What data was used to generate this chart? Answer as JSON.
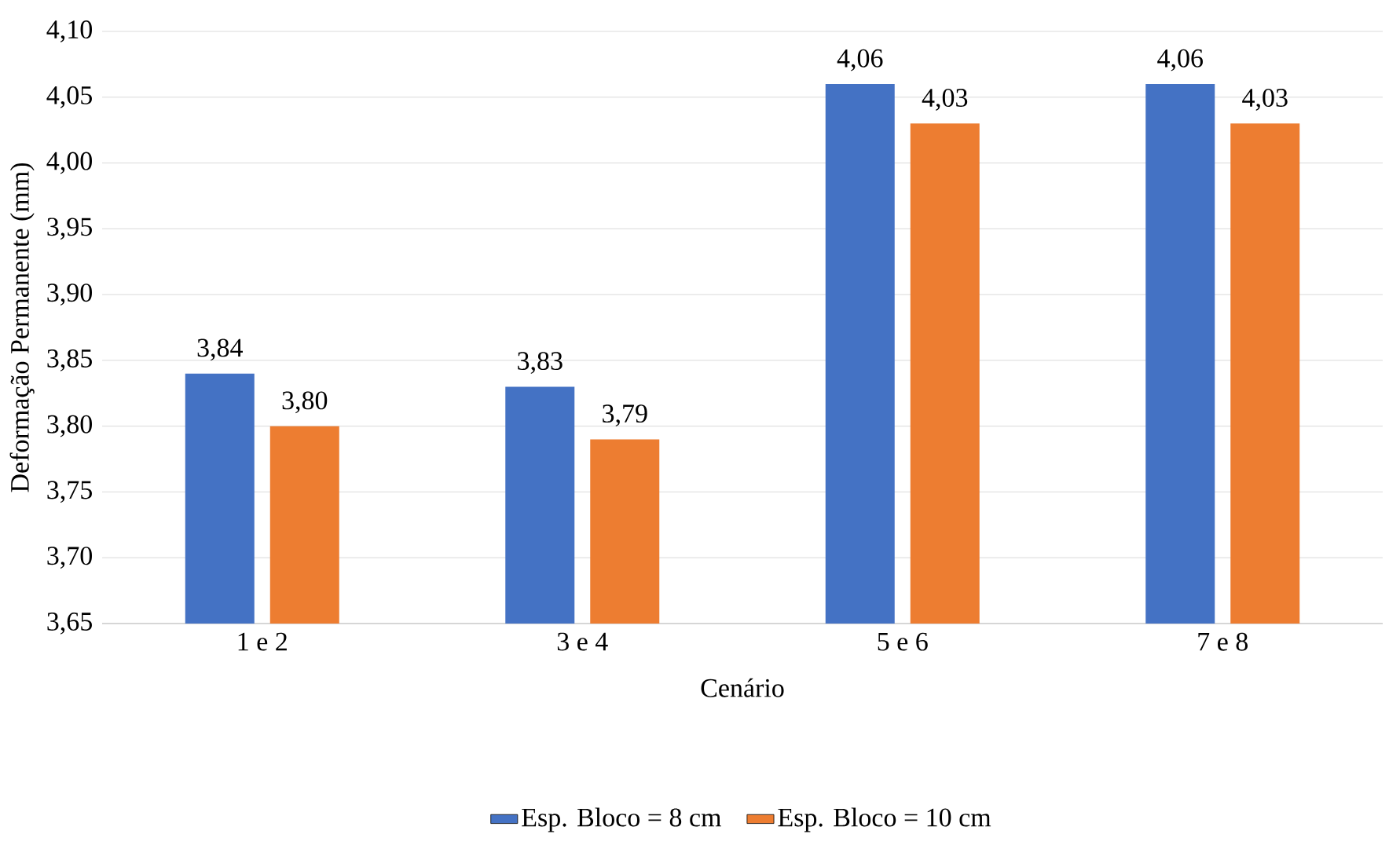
{
  "chart_data": {
    "type": "bar",
    "xlabel": "Cenário",
    "ylabel": "Deformação Permanente (mm)",
    "categories": [
      "1 e 2",
      "3 e 4",
      "5 e 6",
      "7 e 8"
    ],
    "series": [
      {
        "name": "Esp. Bloco = 8 cm",
        "color": "#4472c4",
        "values": [
          3.84,
          3.83,
          4.06,
          4.06
        ],
        "value_labels": [
          "3,84",
          "3,83",
          "4,06",
          "4,06"
        ]
      },
      {
        "name": "Esp. Bloco = 10 cm",
        "color": "#ed7d31",
        "values": [
          3.8,
          3.79,
          4.03,
          4.03
        ],
        "value_labels": [
          "3,80",
          "3,79",
          "4,03",
          "4,03"
        ]
      }
    ],
    "ylim": [
      3.65,
      4.1
    ],
    "yticks": [
      {
        "value": 3.65,
        "label": "3,65"
      },
      {
        "value": 3.7,
        "label": "3,70"
      },
      {
        "value": 3.75,
        "label": "3,75"
      },
      {
        "value": 3.8,
        "label": "3,80"
      },
      {
        "value": 3.85,
        "label": "3,85"
      },
      {
        "value": 3.9,
        "label": "3,90"
      },
      {
        "value": 3.95,
        "label": "3,95"
      },
      {
        "value": 4.0,
        "label": "4,00"
      },
      {
        "value": 4.05,
        "label": "4,05"
      },
      {
        "value": 4.1,
        "label": "4,10"
      }
    ],
    "grid": "y",
    "legend": "bottom"
  }
}
